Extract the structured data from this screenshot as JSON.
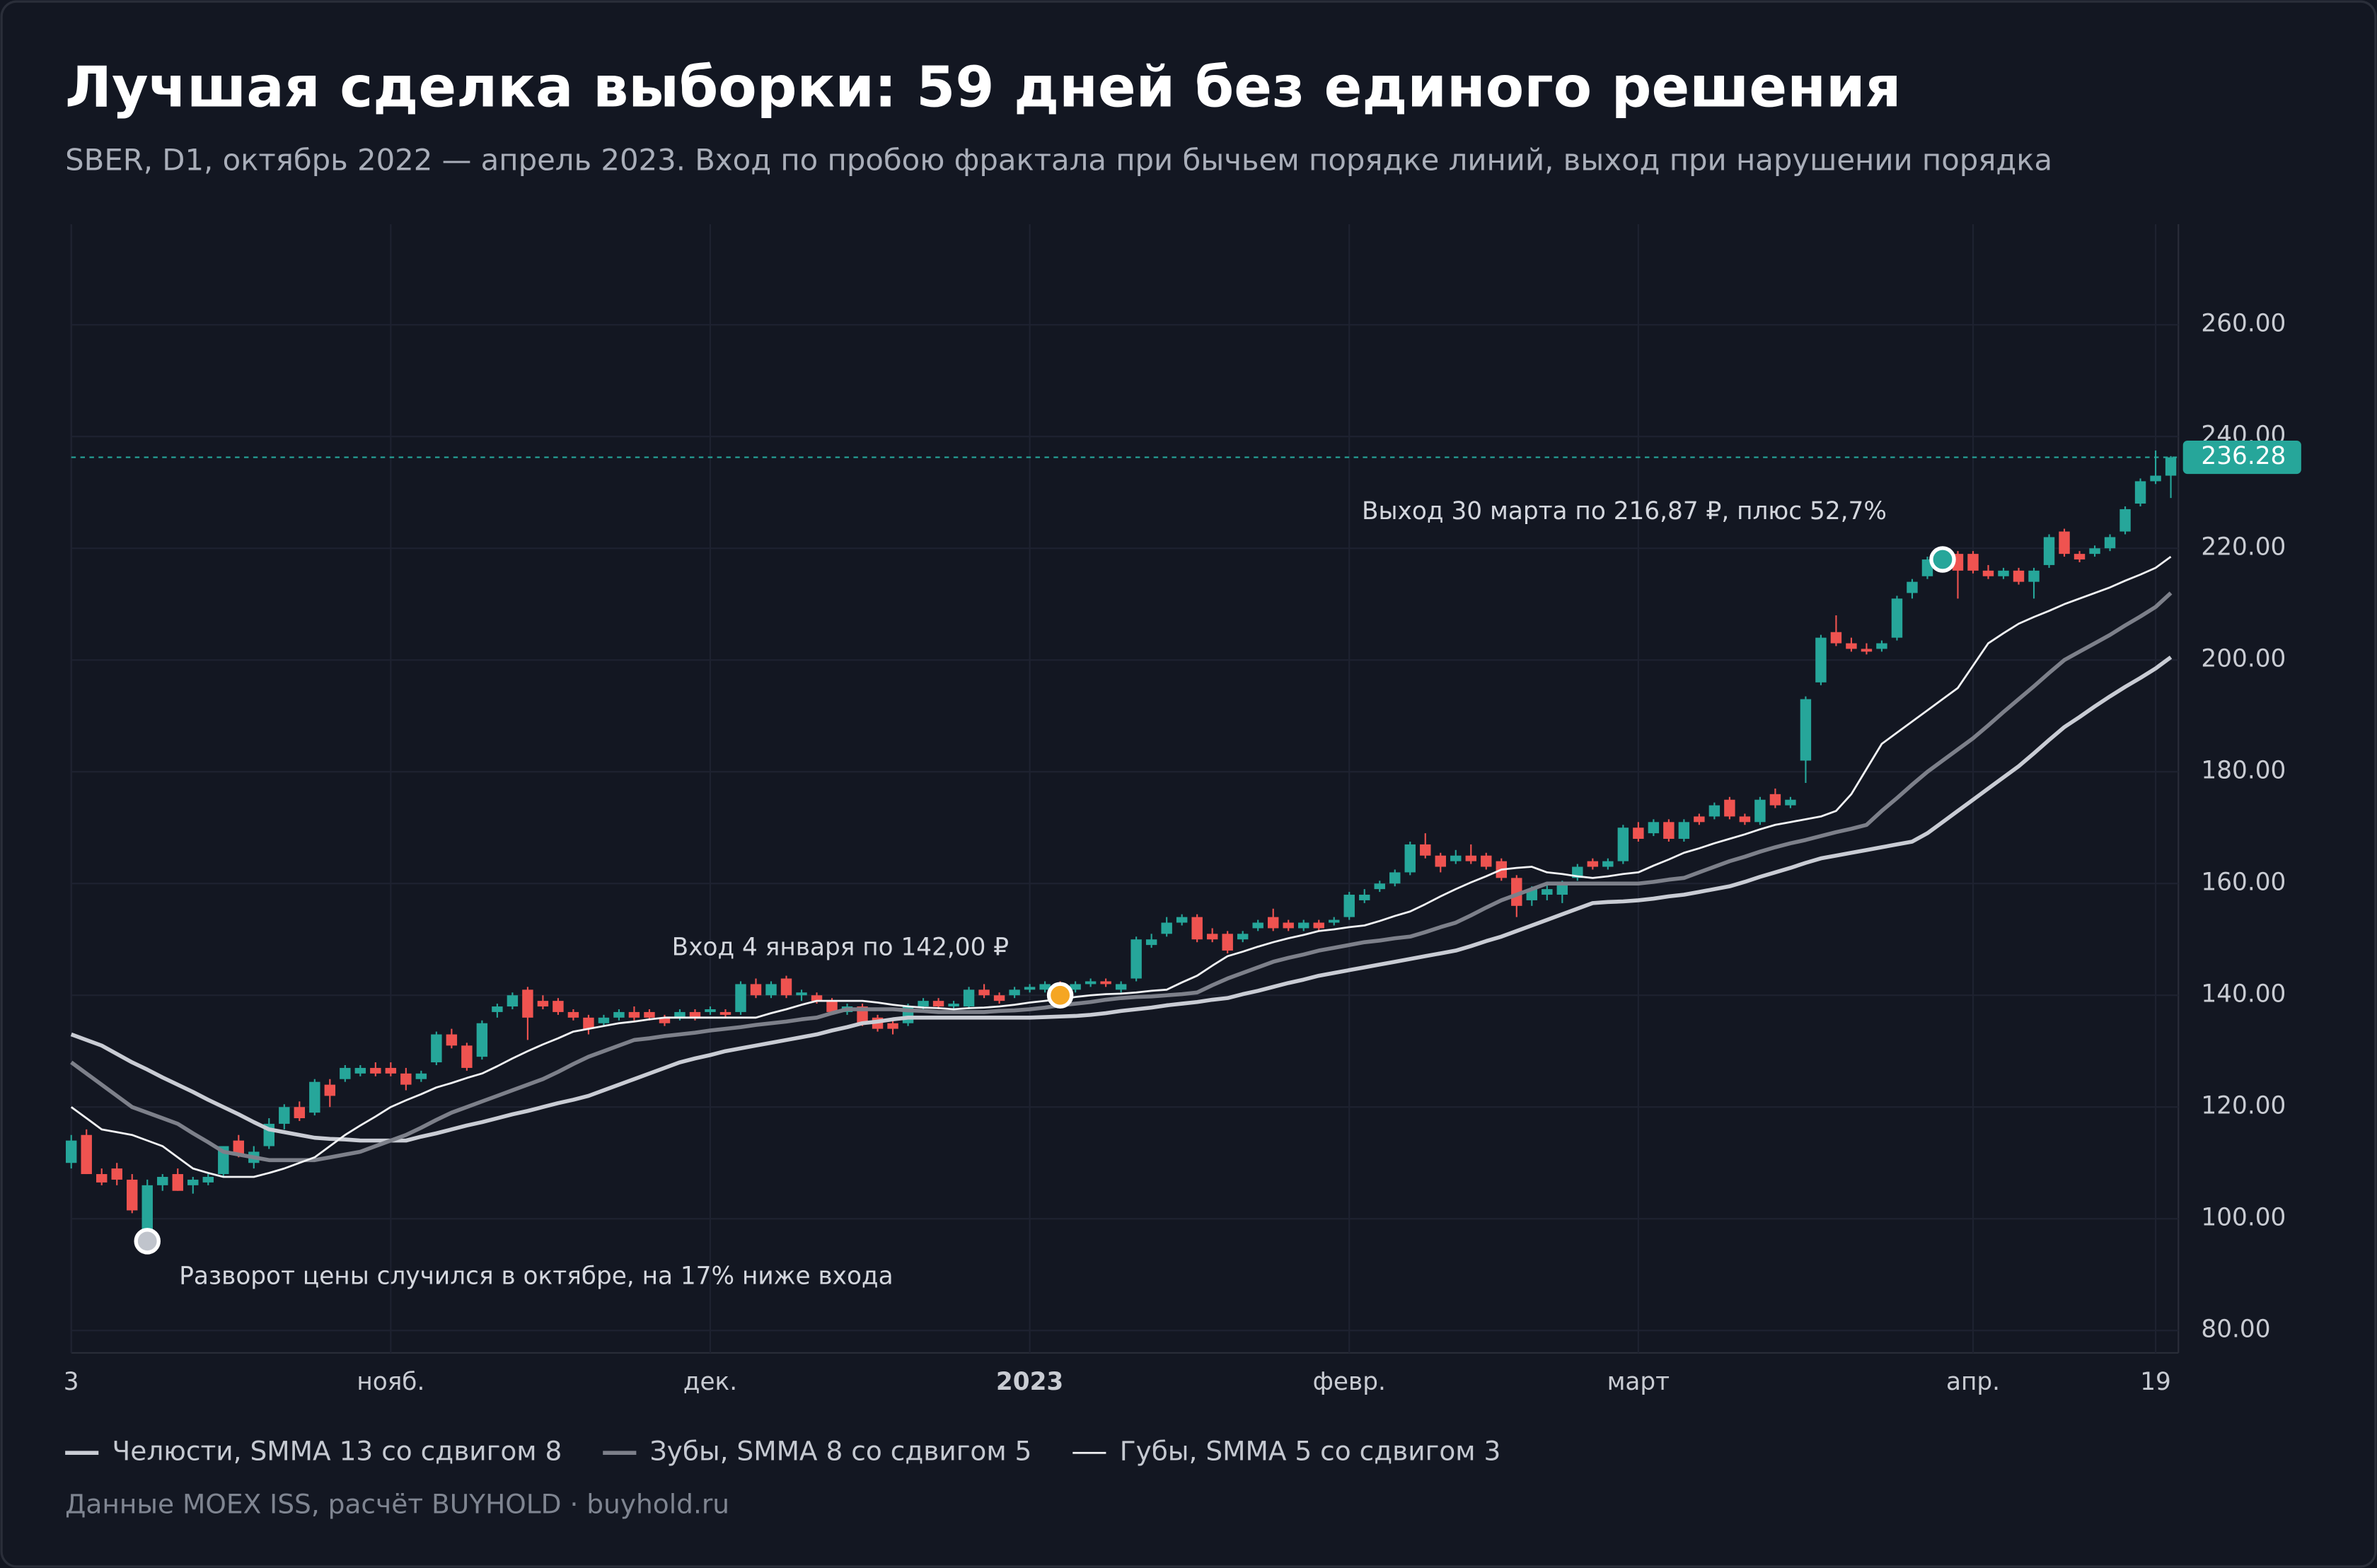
{
  "chart_data": {
    "type": "candlestick",
    "title": "Лучшая сделка выборки: 59 дней без единого решения",
    "subtitle": "SBER, D1, октябрь 2022 — апрель 2023. Вход по пробою фрактала при бычьем порядке линий, выход при нарушении порядка",
    "source": "Данные MOEX ISS, расчёт BUYHOLD · buyhold.ru",
    "categories": [
      "3",
      null,
      null,
      null,
      null,
      null,
      null,
      null,
      null,
      null,
      null,
      null,
      null,
      null,
      null,
      null,
      null,
      null,
      null,
      null,
      null,
      "нояб.",
      null,
      null,
      null,
      null,
      null,
      null,
      null,
      null,
      null,
      null,
      null,
      null,
      null,
      null,
      null,
      null,
      null,
      null,
      null,
      null,
      "дек.",
      null,
      null,
      null,
      null,
      null,
      null,
      null,
      null,
      null,
      null,
      null,
      null,
      null,
      null,
      null,
      null,
      null,
      null,
      null,
      null,
      "2023",
      null,
      null,
      null,
      null,
      null,
      null,
      null,
      null,
      null,
      null,
      null,
      null,
      null,
      null,
      null,
      null,
      null,
      null,
      null,
      null,
      "февр.",
      null,
      null,
      null,
      null,
      null,
      null,
      null,
      null,
      null,
      null,
      null,
      null,
      null,
      null,
      null,
      null,
      null,
      null,
      "март",
      null,
      null,
      null,
      null,
      null,
      null,
      null,
      null,
      null,
      null,
      null,
      null,
      null,
      null,
      null,
      null,
      null,
      null,
      null,
      null,
      null,
      "апр.",
      null,
      null,
      null,
      null,
      null,
      null,
      null,
      null,
      null,
      null,
      null,
      "19",
      null
    ],
    "open": [
      110,
      115,
      108,
      109,
      107,
      97,
      106,
      108,
      106,
      106.5,
      108,
      114,
      110,
      113,
      117,
      120,
      119,
      124,
      125,
      126,
      127,
      127,
      126,
      125,
      128,
      133,
      131,
      129,
      137,
      138,
      141,
      139,
      139,
      137,
      136,
      135,
      136,
      137,
      137,
      136,
      136,
      137,
      137,
      137,
      137,
      142,
      140,
      143,
      140,
      140,
      139,
      137,
      138,
      136,
      135,
      135,
      138,
      139,
      138,
      138,
      141,
      140,
      140,
      141,
      141,
      142,
      141,
      142,
      142.5,
      141,
      143,
      149,
      151,
      153,
      154,
      151,
      151,
      150,
      152,
      154,
      153,
      152,
      153,
      153,
      154,
      157,
      159,
      160,
      162,
      167,
      165,
      164,
      165,
      165,
      164,
      161,
      157,
      158,
      158,
      161,
      164,
      163,
      164,
      170,
      169,
      171,
      168,
      172,
      172,
      175,
      172,
      171,
      176,
      174,
      182,
      196,
      205,
      203,
      202,
      202,
      204,
      212,
      215,
      217,
      219,
      219,
      216,
      215,
      216,
      214,
      217,
      223,
      219,
      219,
      220,
      223,
      228,
      232,
      233
    ],
    "high": [
      115,
      116,
      109,
      110,
      108,
      107,
      108,
      109,
      107.5,
      108,
      113,
      115,
      113,
      118,
      120.5,
      121,
      125,
      125,
      127.5,
      127.5,
      128,
      128,
      127,
      126.5,
      133.5,
      134,
      131.5,
      135.5,
      138.5,
      140.5,
      141.5,
      140,
      139.5,
      137.5,
      136.5,
      136.5,
      137.5,
      138,
      137.5,
      136.5,
      137.5,
      137.5,
      138,
      137.5,
      142.5,
      143,
      142.5,
      143.5,
      141,
      140.5,
      139.5,
      138.5,
      138.5,
      136.5,
      136,
      138.5,
      139.5,
      139.5,
      139,
      141.5,
      142,
      140.5,
      141.5,
      142,
      142.5,
      142.5,
      142.5,
      143,
      143,
      142.5,
      150.5,
      151,
      154,
      154.5,
      154.5,
      152,
      151.5,
      151.5,
      153.5,
      155.5,
      153.5,
      153.5,
      153.5,
      154,
      158.5,
      159,
      160.5,
      162.5,
      167.5,
      169,
      165.5,
      166,
      167,
      165.5,
      164.5,
      161.5,
      159.5,
      160,
      160.5,
      163.5,
      164.5,
      164.5,
      170.5,
      171,
      171.5,
      171.5,
      171.5,
      172.5,
      174.5,
      175.5,
      172.5,
      175.5,
      177,
      175.5,
      193.5,
      204.5,
      208,
      204,
      203,
      203.5,
      211.5,
      214.5,
      218.5,
      219.5,
      219.5,
      219.5,
      217,
      216.5,
      216.5,
      216.5,
      222.5,
      223.5,
      219.5,
      220.5,
      222.5,
      227.5,
      232.5,
      237.5,
      236.5
    ],
    "low": [
      109,
      108,
      106,
      106,
      101,
      96,
      105,
      105,
      104.5,
      106,
      107.5,
      111,
      109,
      112.5,
      116,
      117.5,
      118.5,
      120,
      124.5,
      125.5,
      125.5,
      125.5,
      123,
      124.5,
      127.5,
      130.5,
      126.5,
      128.5,
      136,
      137.5,
      132,
      137.5,
      136.5,
      135.5,
      133,
      134.5,
      135.5,
      135.5,
      135.5,
      134.5,
      135.5,
      135.5,
      136.5,
      136,
      136.5,
      139.5,
      139.5,
      139.5,
      139,
      138.5,
      136.5,
      136.5,
      134.5,
      133.5,
      133,
      134.5,
      137.5,
      137.5,
      137.5,
      137.5,
      139.5,
      138.5,
      139.5,
      140.5,
      140.5,
      140.5,
      140.5,
      141.5,
      141.5,
      140.5,
      142.5,
      148.5,
      150.5,
      152.5,
      149.5,
      149.5,
      147.5,
      149.5,
      151.5,
      151.5,
      151.5,
      151.5,
      151.5,
      152.5,
      153.5,
      156.5,
      158.5,
      159.5,
      161.5,
      164.5,
      162,
      163.5,
      163.5,
      162.5,
      160.5,
      154,
      156,
      157,
      156.5,
      160.5,
      162.5,
      162.5,
      163.5,
      167.5,
      168.5,
      167.5,
      167.5,
      170.5,
      171.5,
      171.5,
      170.5,
      170.5,
      173.5,
      173.5,
      178,
      195.5,
      202.5,
      201.5,
      201,
      201.5,
      203.5,
      211,
      214.5,
      216.5,
      211,
      215.5,
      214.5,
      214.5,
      213.5,
      211,
      216.5,
      218.5,
      217.5,
      218.5,
      219.5,
      222.5,
      227.5,
      231.5,
      229
    ],
    "close": [
      114,
      108,
      106.5,
      107,
      101.5,
      106,
      107.5,
      105,
      107,
      107.5,
      113,
      111.5,
      112,
      117,
      120,
      118,
      124.5,
      122,
      127,
      127,
      126,
      126,
      124,
      126,
      133,
      131,
      127,
      135,
      138,
      140,
      136,
      138,
      137,
      136,
      134,
      136,
      137,
      136,
      136,
      135,
      137,
      136,
      137.5,
      136.5,
      142,
      140,
      142,
      140,
      140.5,
      139,
      137,
      138,
      135,
      134,
      134,
      138,
      139,
      138,
      138.5,
      141,
      140,
      139,
      141,
      141.5,
      142,
      141,
      142,
      142.5,
      142,
      142,
      150,
      150,
      153,
      154,
      150,
      150,
      148,
      151,
      153,
      152,
      152,
      153,
      152,
      153.5,
      158,
      158,
      160,
      162,
      167,
      165,
      163,
      165,
      164,
      163,
      161,
      156,
      159,
      159,
      160,
      163,
      163,
      164,
      170,
      168,
      171,
      168,
      171,
      171,
      174,
      172,
      171,
      175,
      174,
      175,
      193,
      204,
      203,
      202,
      201.5,
      203,
      211,
      214,
      218,
      219,
      216,
      216,
      215,
      216,
      214,
      216,
      222,
      219,
      218,
      220,
      222,
      227,
      232,
      233,
      236.28
    ],
    "up_color": "#26a69a",
    "down_color": "#ef5350",
    "series": [
      {
        "name": "Челюсти, SMMA 13 со сдвигом 8",
        "color": "#c9ccd4",
        "values": [
          133,
          132,
          131,
          129.5,
          128,
          126.7,
          125.3,
          124,
          122.7,
          121.3,
          120,
          118.7,
          117.3,
          116,
          115.5,
          115,
          114.5,
          114.3,
          114.2,
          114,
          114,
          114,
          114,
          114.7,
          115.3,
          116,
          116.7,
          117.3,
          118,
          118.7,
          119.3,
          120,
          120.7,
          121.3,
          122,
          123,
          124,
          125,
          126,
          127,
          128,
          128.7,
          129.3,
          130,
          130.5,
          131,
          131.5,
          132,
          132.5,
          133,
          133.7,
          134.3,
          135,
          135.3,
          135.7,
          136,
          136,
          136,
          136,
          136,
          136,
          136,
          136,
          136,
          136.1,
          136.2,
          136.3,
          136.5,
          136.8,
          137.2,
          137.5,
          137.8,
          138.2,
          138.5,
          138.8,
          139.2,
          139.5,
          140.2,
          140.8,
          141.5,
          142.2,
          142.8,
          143.5,
          144,
          144.5,
          145,
          145.5,
          146,
          146.5,
          147,
          147.5,
          148,
          148.8,
          149.7,
          150.5,
          151.5,
          152.5,
          153.5,
          154.5,
          155.5,
          156.5,
          156.7,
          156.8,
          157,
          157.3,
          157.7,
          158,
          158.5,
          159,
          159.5,
          160.3,
          161.2,
          162,
          162.8,
          163.7,
          164.5,
          165,
          165.5,
          166,
          166.5,
          167,
          167.5,
          169,
          171,
          173,
          175,
          177,
          179,
          181,
          183.3,
          185.7,
          188,
          189.8,
          191.7,
          193.5,
          195.2,
          196.8,
          198.5,
          200.5
        ]
      },
      {
        "name": "Зубы, SMMA 8 со сдвигом 5",
        "color": "#7d808a",
        "values": [
          128,
          126,
          124,
          122,
          120,
          119,
          118,
          117,
          115.3,
          113.7,
          112,
          111.5,
          111,
          110.5,
          110.5,
          110.5,
          110.5,
          111,
          111.5,
          112,
          113,
          114,
          115,
          116.3,
          117.7,
          119,
          120,
          121,
          122,
          123,
          124,
          125,
          126.3,
          127.7,
          129,
          130,
          131,
          132,
          132.3,
          132.7,
          133,
          133.3,
          133.7,
          134,
          134.3,
          134.7,
          135,
          135.3,
          135.7,
          136,
          136.8,
          137.5,
          137.5,
          137.5,
          137.5,
          137.3,
          137.2,
          137,
          137,
          137,
          137,
          137.2,
          137.3,
          137.5,
          137.8,
          138.2,
          138.5,
          138.8,
          139.2,
          139.5,
          139.7,
          139.8,
          140,
          140.2,
          140.5,
          141.8,
          143,
          144,
          145,
          146,
          146.7,
          147.3,
          148,
          148.5,
          149,
          149.5,
          149.8,
          150.2,
          150.5,
          151.3,
          152.2,
          153,
          154.3,
          155.7,
          157,
          158,
          159,
          160,
          160,
          160,
          160,
          160,
          160,
          160,
          160.3,
          160.7,
          161,
          162,
          163,
          164,
          164.8,
          165.7,
          166.5,
          167.2,
          167.8,
          168.5,
          169.2,
          169.8,
          170.5,
          173,
          175.3,
          177.7,
          180,
          182,
          184,
          186,
          188.3,
          190.7,
          193,
          195.3,
          197.7,
          200,
          201.5,
          203,
          204.5,
          206.2,
          207.8,
          209.5,
          212
        ]
      },
      {
        "name": "Губы, SMMA 5 со сдвигом 3",
        "color": "#f2f3f5",
        "values": [
          120,
          118,
          116,
          115.5,
          115,
          114,
          113,
          111,
          109,
          108.2,
          107.5,
          107.5,
          107.5,
          108.2,
          109,
          110,
          111,
          113,
          115,
          116.7,
          118.3,
          120,
          121.2,
          122.3,
          123.5,
          124.3,
          125.2,
          126,
          127.3,
          128.7,
          130,
          131.2,
          132.3,
          133.5,
          134,
          134.5,
          135,
          135.3,
          135.7,
          136,
          136,
          136,
          136,
          136,
          136,
          136,
          136.8,
          137.5,
          138.3,
          139,
          139,
          139,
          139,
          138.7,
          138.3,
          138,
          137.8,
          137.7,
          137.5,
          137.7,
          137.8,
          138,
          138.3,
          138.7,
          139,
          139.3,
          139.7,
          140,
          140.2,
          140.3,
          140.5,
          140.8,
          141,
          142.3,
          143.5,
          145.3,
          147,
          147.8,
          148.7,
          149.5,
          150.2,
          150.8,
          151.5,
          151.8,
          152.2,
          152.5,
          153.3,
          154.2,
          155,
          156.3,
          157.7,
          159,
          160.2,
          161.3,
          162.5,
          162.8,
          163,
          162,
          161.7,
          161.3,
          161,
          161.3,
          161.7,
          162,
          163.2,
          164.3,
          165.5,
          166.3,
          167.2,
          168,
          168.8,
          169.7,
          170.5,
          171,
          171.5,
          172,
          173,
          176,
          180.5,
          185,
          187,
          189,
          191,
          193,
          195,
          199,
          203,
          204.8,
          206.5,
          207.7,
          208.8,
          210,
          211,
          212,
          213,
          214.2,
          215.3,
          216.5,
          218.5
        ]
      }
    ],
    "markers": [
      {
        "index": 5,
        "value": 96,
        "color": "#c0c4cc",
        "label": "Разворот цены случился в октябре, на 17% ниже входа"
      },
      {
        "index": 65,
        "value": 140,
        "color": "#f5a623",
        "label": "Вход 4 января по 142,00 ₽"
      },
      {
        "index": 123,
        "value": 218,
        "color": "#26a69a",
        "label": "Выход 30 марта по 216,87 ₽, плюс 52,7%"
      }
    ],
    "ylim": [
      76,
      278
    ],
    "yticks": [
      {
        "value": 80,
        "label": "80.00"
      },
      {
        "value": 100,
        "label": "100.00"
      },
      {
        "value": 120,
        "label": "120.00"
      },
      {
        "value": 140,
        "label": "140.00"
      },
      {
        "value": 160,
        "label": "160.00"
      },
      {
        "value": 180,
        "label": "180.00"
      },
      {
        "value": 200,
        "label": "200.00"
      },
      {
        "value": 220,
        "label": "220.00"
      },
      {
        "value": 240,
        "label": "240.00"
      },
      {
        "value": 260,
        "label": "260.00"
      }
    ],
    "grid": true
  }
}
